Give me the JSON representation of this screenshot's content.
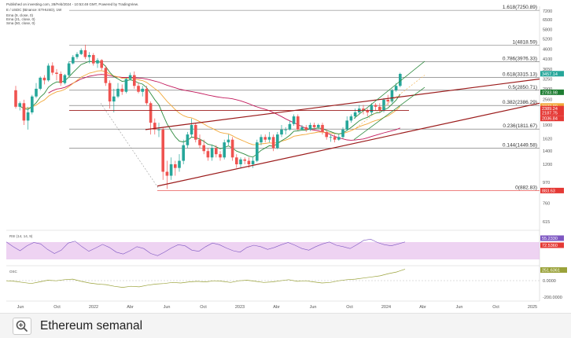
{
  "header": {
    "line1": "Published on investing.com, 28/Feb/2024 - 10:53:48 GMT, Powered by TradingView.",
    "line2": "E / USDC (Binance: ETHUSD), 1W",
    "ind1": "Ema (9, close, 0)",
    "ind2": "Ema (21, close, 0)",
    "ind3": "Sma (50, close, 0)"
  },
  "caption": {
    "text": "Ethereum semanal"
  },
  "colors": {
    "up": "#26a69a",
    "down": "#ef5350",
    "ema_fast": "#2e8b3f",
    "ema_slow": "#f2a93b",
    "sma": "#c2185b",
    "trend": "#9b1b1b",
    "fib": "#666666",
    "rsi_fill": "#e3b5ea",
    "rsi_line": "#7e57c2",
    "osc_line": "#9aa23a",
    "price_tag": "#26a69a",
    "red_tag": "#e53935",
    "green_tag": "#1e7d32"
  },
  "chart_data": [
    {
      "type": "candlestick",
      "title": "E / USDC (Binance: ETHUSD), 1W",
      "x_ticks": [
        "Jun",
        "Oct",
        "2022",
        "Abr",
        "Jun",
        "Oct",
        "2023",
        "Abr",
        "Jun",
        "Oct",
        "2024",
        "Abr",
        "Jun",
        "Oct",
        "2025"
      ],
      "y_ticks": [
        7200,
        6500,
        5800,
        5200,
        4600,
        4100,
        3650,
        3250,
        2900,
        2560,
        2250,
        1900,
        1620,
        1400,
        1200,
        970,
        760,
        615
      ],
      "y_scale": "log",
      "ylim": [
        560,
        7600
      ],
      "candles": [
        [
          2850,
          2350,
          3000,
          2300
        ],
        [
          2350,
          2450,
          2500,
          2250
        ],
        [
          2450,
          2000,
          2550,
          1900
        ],
        [
          2000,
          2200,
          2350,
          1800
        ],
        [
          2200,
          2650,
          2700,
          2150
        ],
        [
          2650,
          2900,
          3100,
          2600
        ],
        [
          2900,
          3300,
          3350,
          2850
        ],
        [
          3300,
          3200,
          3400,
          3050
        ],
        [
          3200,
          3800,
          3900,
          3150
        ],
        [
          3800,
          3500,
          3950,
          3400
        ],
        [
          3500,
          3450,
          3650,
          3200
        ],
        [
          3450,
          3100,
          3550,
          3000
        ],
        [
          3100,
          3400,
          3450,
          3050
        ],
        [
          3400,
          3900,
          4000,
          3350
        ],
        [
          3900,
          4200,
          4300,
          3850
        ],
        [
          4200,
          4350,
          4450,
          4100
        ],
        [
          4350,
          4550,
          4650,
          4300
        ],
        [
          4550,
          4200,
          4850,
          4100
        ],
        [
          4200,
          4300,
          4450,
          3900
        ],
        [
          4300,
          3900,
          4400,
          3800
        ],
        [
          3900,
          4050,
          4150,
          3700
        ],
        [
          4050,
          3700,
          4100,
          3600
        ],
        [
          3700,
          3100,
          3800,
          3000
        ],
        [
          3100,
          2500,
          3200,
          2300
        ],
        [
          2500,
          2650,
          2900,
          2200
        ],
        [
          2650,
          2900,
          3100,
          2600
        ],
        [
          2900,
          2800,
          3050,
          2700
        ],
        [
          2800,
          3250,
          3300,
          2750
        ],
        [
          3250,
          3400,
          3500,
          3200
        ],
        [
          3400,
          3000,
          3550,
          2900
        ],
        [
          3000,
          2800,
          3100,
          2750
        ],
        [
          2800,
          2900,
          3000,
          2650
        ],
        [
          2900,
          2450,
          3000,
          2400
        ],
        [
          2450,
          1950,
          2500,
          1700
        ],
        [
          1950,
          1800,
          2050,
          1700
        ],
        [
          1800,
          1800,
          1950,
          1650
        ],
        [
          1800,
          1100,
          1850,
          1000
        ],
        [
          1100,
          1050,
          1250,
          900
        ],
        [
          1050,
          1200,
          1300,
          1000
        ],
        [
          1200,
          1150,
          1250,
          1050
        ],
        [
          1150,
          1250,
          1350,
          1100
        ],
        [
          1250,
          1500,
          1600,
          1200
        ],
        [
          1500,
          1700,
          1750,
          1450
        ],
        [
          1700,
          1900,
          2050,
          1650
        ],
        [
          1900,
          1600,
          1950,
          1550
        ],
        [
          1600,
          1500,
          1700,
          1450
        ],
        [
          1500,
          1400,
          1600,
          1350
        ],
        [
          1400,
          1300,
          1450,
          1250
        ],
        [
          1300,
          1450,
          1500,
          1250
        ],
        [
          1450,
          1350,
          1500,
          1300
        ],
        [
          1350,
          1300,
          1400,
          1250
        ],
        [
          1300,
          1550,
          1600,
          1270
        ],
        [
          1550,
          1600,
          1700,
          1500
        ],
        [
          1600,
          1300,
          1650,
          1250
        ],
        [
          1300,
          1200,
          1350,
          1150
        ],
        [
          1200,
          1270,
          1300,
          1150
        ],
        [
          1270,
          1250,
          1300,
          1200
        ],
        [
          1250,
          1200,
          1300,
          1150
        ],
        [
          1200,
          1250,
          1300,
          1150
        ],
        [
          1250,
          1550,
          1600,
          1230
        ],
        [
          1550,
          1650,
          1700,
          1500
        ],
        [
          1650,
          1600,
          1700,
          1550
        ],
        [
          1600,
          1650,
          1750,
          1550
        ],
        [
          1650,
          1450,
          1700,
          1400
        ],
        [
          1450,
          1700,
          1750,
          1430
        ],
        [
          1700,
          1800,
          1900,
          1650
        ],
        [
          1800,
          1800,
          1850,
          1700
        ],
        [
          1800,
          1920,
          2000,
          1780
        ],
        [
          1920,
          2100,
          2150,
          1880
        ],
        [
          2100,
          1800,
          2150,
          1780
        ],
        [
          1800,
          1850,
          1900,
          1780
        ],
        [
          1850,
          1800,
          1900,
          1750
        ],
        [
          1800,
          1900,
          1950,
          1770
        ],
        [
          1900,
          1850,
          1950,
          1800
        ],
        [
          1850,
          1900,
          1930,
          1800
        ],
        [
          1900,
          1750,
          1950,
          1700
        ],
        [
          1750,
          1650,
          1800,
          1600
        ],
        [
          1650,
          1650,
          1700,
          1560
        ],
        [
          1650,
          1600,
          1700,
          1550
        ],
        [
          1600,
          1650,
          1700,
          1580
        ],
        [
          1650,
          1800,
          1850,
          1620
        ],
        [
          1800,
          2000,
          2100,
          1780
        ],
        [
          2000,
          2100,
          2150,
          1950
        ],
        [
          2100,
          2200,
          2300,
          2050
        ],
        [
          2200,
          2300,
          2400,
          2150
        ],
        [
          2300,
          2250,
          2400,
          2150
        ],
        [
          2250,
          2200,
          2300,
          2100
        ],
        [
          2200,
          2400,
          2450,
          2150
        ],
        [
          2400,
          2350,
          2450,
          2250
        ],
        [
          2350,
          2250,
          2450,
          2200
        ],
        [
          2250,
          2550,
          2600,
          2200
        ],
        [
          2550,
          2500,
          2700,
          2400
        ],
        [
          2500,
          2850,
          2900,
          2450
        ],
        [
          2850,
          3000,
          3100,
          2800
        ],
        [
          3000,
          3450,
          3500,
          2950
        ]
      ],
      "fib_levels": [
        {
          "ratio": "1.618",
          "price": "7250.89"
        },
        {
          "ratio": "1",
          "price": "4818.59"
        },
        {
          "ratio": "0.786",
          "price": "3976.33"
        },
        {
          "ratio": "0.618",
          "price": "3315.13"
        },
        {
          "ratio": "0.5",
          "price": "2850.71"
        },
        {
          "ratio": "0.382",
          "price": "2386.29"
        },
        {
          "ratio": "0.236",
          "price": "1811.67"
        },
        {
          "ratio": "0.144",
          "price": "1449.58"
        },
        {
          "ratio": "0",
          "price": "882.83"
        }
      ],
      "price_tags": [
        {
          "text": "3457.14",
          "price": 3457,
          "color": "price_tag"
        },
        {
          "text": "2783.98",
          "price": 2784,
          "color": "green_tag"
        },
        {
          "text": "2372.89",
          "price": 2372,
          "color": "ema_slow"
        },
        {
          "text": "2389.24",
          "price": 2300,
          "color": "red_tag"
        },
        {
          "text": "2187.75",
          "price": 2187,
          "color": "red_tag"
        },
        {
          "text": "2036.84",
          "price": 2050,
          "color": "red_tag"
        },
        {
          "text": "883.63",
          "price": 883,
          "color": "red_tag"
        }
      ]
    },
    {
      "type": "line",
      "title": "RSI (14, 14, 9)",
      "y_ticks": [],
      "tags": [
        {
          "text": "55.2330",
          "color": "rsi_line"
        },
        {
          "text": "72.5360",
          "color": "red_tag"
        }
      ],
      "values": [
        72,
        55,
        40,
        58,
        70,
        65,
        45,
        30,
        42,
        68,
        75,
        55,
        38,
        50,
        63,
        52,
        35,
        28,
        40,
        55,
        48,
        30,
        22,
        35,
        50,
        62,
        58,
        42,
        38,
        55,
        68,
        62,
        50,
        40,
        35,
        52,
        60,
        55,
        45,
        52,
        62,
        70,
        60,
        48,
        42,
        55,
        65,
        72,
        60,
        55,
        48,
        62,
        78,
        82,
        70,
        62,
        58,
        65,
        72
      ]
    },
    {
      "type": "line",
      "title": "OSC",
      "y_ticks": [
        "0.0000",
        "-200.0000"
      ],
      "tags": [
        {
          "text": "251.6361",
          "color": "osc_line"
        }
      ],
      "values": [
        40,
        30,
        10,
        -10,
        20,
        50,
        40,
        60,
        70,
        30,
        0,
        -20,
        -30,
        -60,
        -80,
        -60,
        -70,
        -40,
        -20,
        -10,
        10,
        0,
        20,
        30,
        20,
        40,
        30,
        10,
        40,
        50,
        30,
        10,
        20,
        40,
        60,
        30,
        40,
        20,
        0,
        10,
        40,
        60,
        70,
        90,
        110,
        130,
        170,
        200,
        251
      ]
    }
  ]
}
